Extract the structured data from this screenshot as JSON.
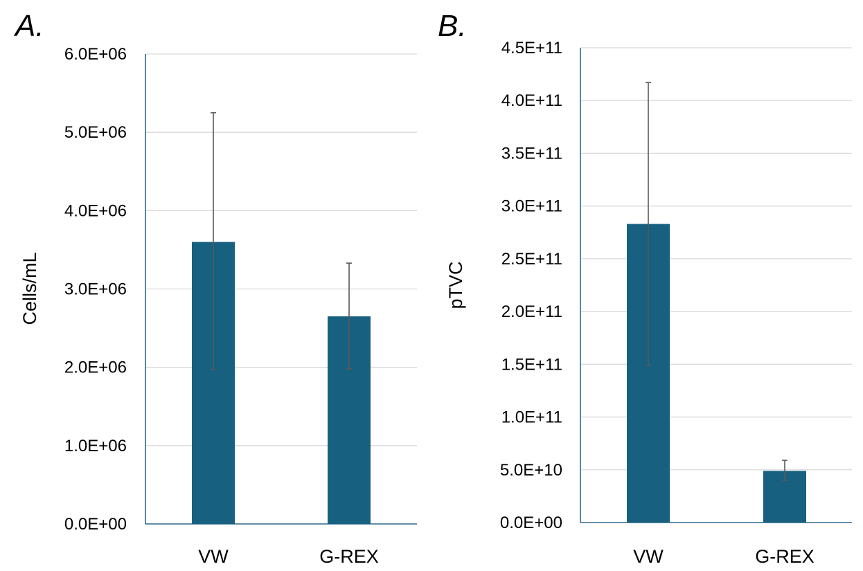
{
  "chart_data": [
    {
      "type": "bar",
      "panel_label": "A.",
      "ylabel": "Cells/mL",
      "xlabel": "",
      "categories": [
        "VW",
        "G-REX"
      ],
      "values": [
        3600000,
        2650000
      ],
      "error_upper": [
        5250000,
        3330000
      ],
      "error_lower": [
        1970000,
        1980000
      ],
      "ylim": [
        0,
        6000000
      ],
      "yticks": [
        0,
        1000000,
        2000000,
        3000000,
        4000000,
        5000000,
        6000000
      ],
      "ytick_labels": [
        "0.0E+00",
        "1.0E+06",
        "2.0E+06",
        "3.0E+06",
        "4.0E+06",
        "5.0E+06",
        "6.0E+06"
      ],
      "grid": true,
      "bar_color": "#17607f"
    },
    {
      "type": "bar",
      "panel_label": "B.",
      "ylabel": "pTVC",
      "xlabel": "",
      "categories": [
        "VW",
        "G-REX"
      ],
      "values": [
        283000000000,
        49000000000
      ],
      "error_upper": [
        417000000000,
        59000000000
      ],
      "error_lower": [
        149000000000,
        40000000000
      ],
      "ylim": [
        0,
        450000000000
      ],
      "yticks": [
        0,
        50000000000,
        100000000000,
        150000000000,
        200000000000,
        250000000000,
        300000000000,
        350000000000,
        400000000000,
        450000000000
      ],
      "ytick_labels": [
        "0.0E+00",
        "5.0E+10",
        "1.0E+11",
        "1.5E+11",
        "2.0E+11",
        "2.5E+11",
        "3.0E+11",
        "3.5E+11",
        "4.0E+11",
        "4.5E+11"
      ],
      "grid": true,
      "bar_color": "#17607f"
    }
  ]
}
